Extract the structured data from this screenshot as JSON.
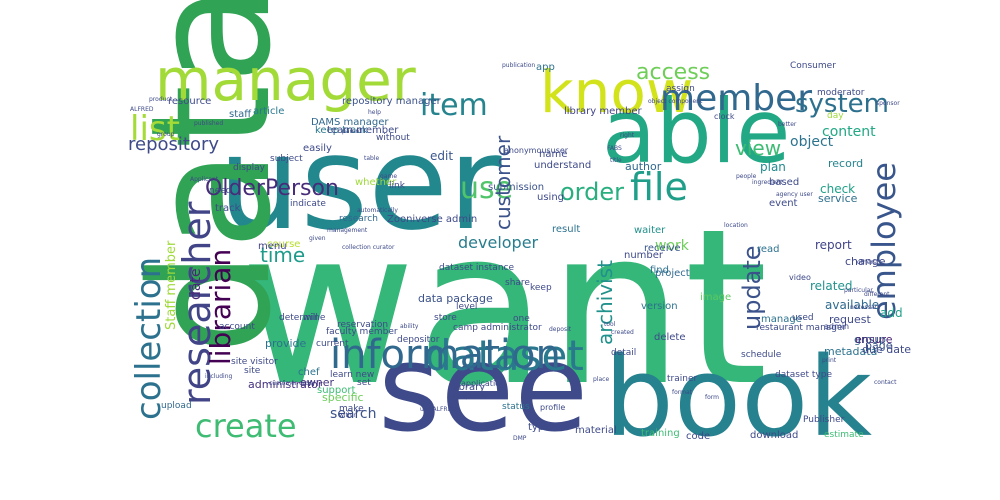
{
  "words": [
    {
      "text": "want",
      "color": "#35b779",
      "weight": 1.0
    },
    {
      "text": "user",
      "color": "#23888e",
      "weight": 0.98
    },
    {
      "text": "data",
      "color": "#31a354",
      "weight": 0.95
    },
    {
      "text": "see",
      "color": "#3e4a89",
      "weight": 0.92
    },
    {
      "text": "book",
      "color": "#26828e",
      "weight": 0.88
    },
    {
      "text": "able",
      "color": "#22a884",
      "weight": 0.82
    },
    {
      "text": "know",
      "color": "#d2e21b",
      "weight": 0.75
    },
    {
      "text": "manager",
      "color": "#a2da37",
      "weight": 0.72
    },
    {
      "text": "dataset",
      "color": "#2a788e",
      "weight": 0.55
    },
    {
      "text": "information",
      "color": "#31688e",
      "weight": 0.55
    },
    {
      "text": "researcher",
      "color": "#414487",
      "weight": 0.52
    },
    {
      "text": "collection",
      "color": "#2c728e",
      "weight": 0.5
    },
    {
      "text": "member",
      "color": "#31688e",
      "weight": 0.45
    },
    {
      "text": "file",
      "color": "#1f9e89",
      "weight": 0.44
    },
    {
      "text": "employee",
      "color": "#39568c",
      "weight": 0.43
    },
    {
      "text": "list",
      "color": "#a5db36",
      "weight": 0.42
    },
    {
      "text": "create",
      "color": "#3fbc73",
      "weight": 0.4
    },
    {
      "text": "use",
      "color": "#50c46a",
      "weight": 0.4
    },
    {
      "text": "item",
      "color": "#25848e",
      "weight": 0.38
    },
    {
      "text": "librarian",
      "color": "#440154",
      "weight": 0.36
    },
    {
      "text": "system",
      "color": "#2d708e",
      "weight": 0.32
    },
    {
      "text": "update",
      "color": "#3b528b",
      "weight": 0.31
    },
    {
      "text": "order",
      "color": "#29af7f",
      "weight": 0.3
    },
    {
      "text": "access",
      "color": "#6ece58",
      "weight": 0.28
    },
    {
      "text": "OlderPerson",
      "color": "#472c7a",
      "weight": 0.27
    },
    {
      "text": "view",
      "color": "#3dbc74",
      "weight": 0.26
    },
    {
      "text": "time",
      "color": "#1e9b8a",
      "weight": 0.25
    },
    {
      "text": "repository",
      "color": "#3e4a89",
      "weight": 0.25
    },
    {
      "text": "customer",
      "color": "#3b528b",
      "weight": 0.24
    },
    {
      "text": "archivist",
      "color": "#21918c",
      "weight": 0.24
    },
    {
      "text": "developer",
      "color": "#287d8e",
      "weight": 0.22
    },
    {
      "text": "content",
      "color": "#22a884",
      "weight": 0.21
    },
    {
      "text": "object",
      "color": "#2c738e",
      "weight": 0.2
    },
    {
      "text": "search",
      "color": "#3b528b",
      "weight": 0.19
    },
    {
      "text": "work",
      "color": "#6ccd5a",
      "weight": 0.18
    },
    {
      "text": "date",
      "color": "#482878",
      "weight": 0.18
    },
    {
      "text": "Staff member",
      "color": "#9fda3a",
      "weight": 0.17
    },
    {
      "text": "report",
      "color": "#414487",
      "weight": 0.16
    },
    {
      "text": "related",
      "color": "#21918c",
      "weight": 0.16
    },
    {
      "text": "edit",
      "color": "#39568c",
      "weight": 0.16
    },
    {
      "text": "add",
      "color": "#1f9e89",
      "weight": 0.15
    },
    {
      "text": "available",
      "color": "#2f6b8e",
      "weight": 0.15
    },
    {
      "text": "plan",
      "color": "#23898e",
      "weight": 0.15
    },
    {
      "text": "check",
      "color": "#1fa088",
      "weight": 0.14
    },
    {
      "text": "record",
      "color": "#25848e",
      "weight": 0.14
    },
    {
      "text": "service",
      "color": "#2e6f8e",
      "weight": 0.14
    },
    {
      "text": "change",
      "color": "#3f4788",
      "weight": 0.14
    },
    {
      "text": "author",
      "color": "#31688e",
      "weight": 0.13
    },
    {
      "text": "provide",
      "color": "#2c728e",
      "weight": 0.13
    },
    {
      "text": "administrator",
      "color": "#46327e",
      "weight": 0.13
    },
    {
      "text": "data package",
      "color": "#3b528b",
      "weight": 0.12
    },
    {
      "text": "owner",
      "color": "#46337e",
      "weight": 0.12
    },
    {
      "text": "specific",
      "color": "#6ccd5a",
      "weight": 0.12
    },
    {
      "text": "metadata",
      "color": "#2c728e",
      "weight": 0.12
    },
    {
      "text": "due date",
      "color": "#3e4989",
      "weight": 0.11
    },
    {
      "text": "page",
      "color": "#3b528b",
      "weight": 0.11
    },
    {
      "text": "group",
      "color": "#31688e",
      "weight": 0.11
    },
    {
      "text": "ensure",
      "color": "#482173",
      "weight": 0.11
    },
    {
      "text": "request",
      "color": "#3e4a89",
      "weight": 0.11
    },
    {
      "text": "article",
      "color": "#2a788e",
      "weight": 0.11
    },
    {
      "text": "resource",
      "color": "#3e4a89",
      "weight": 0.1
    },
    {
      "text": "repository manager",
      "color": "#3b528b",
      "weight": 0.1
    },
    {
      "text": "keep track",
      "color": "#2a788e",
      "weight": 0.1
    },
    {
      "text": "easily",
      "color": "#3e4a89",
      "weight": 0.1
    },
    {
      "text": "image",
      "color": "#5ec962",
      "weight": 0.1
    },
    {
      "text": "project",
      "color": "#31688e",
      "weight": 0.1
    },
    {
      "text": "find",
      "color": "#2c728e",
      "weight": 0.1
    },
    {
      "text": "version",
      "color": "#2c728e",
      "weight": 0.1
    },
    {
      "text": "delete",
      "color": "#3e4a89",
      "weight": 0.1
    },
    {
      "text": "app",
      "color": "#2c728e",
      "weight": 0.1
    },
    {
      "text": "library member",
      "color": "#414487",
      "weight": 0.09
    },
    {
      "text": "name",
      "color": "#3e4a89",
      "weight": 0.09
    },
    {
      "text": "understand",
      "color": "#3e4a89",
      "weight": 0.09
    },
    {
      "text": "submission",
      "color": "#3b528b",
      "weight": 0.09
    },
    {
      "text": "using",
      "color": "#3e4a89",
      "weight": 0.09
    },
    {
      "text": "result",
      "color": "#2c728e",
      "weight": 0.09
    },
    {
      "text": "waiter",
      "color": "#21918c",
      "weight": 0.09
    },
    {
      "text": "receive",
      "color": "#39568c",
      "weight": 0.09
    },
    {
      "text": "event",
      "color": "#3e4a89",
      "weight": 0.09
    },
    {
      "text": "read",
      "color": "#2c728e",
      "weight": 0.09
    },
    {
      "text": "number",
      "color": "#3e4a89",
      "weight": 0.08
    },
    {
      "text": "manage",
      "color": "#2c728e",
      "weight": 0.08
    },
    {
      "text": "based",
      "color": "#3e4a89",
      "weight": 0.08
    },
    {
      "text": "DAMS manager",
      "color": "#31688e",
      "weight": 0.08
    },
    {
      "text": "team member",
      "color": "#3e4a89",
      "weight": 0.08
    },
    {
      "text": "without",
      "color": "#3e4a89",
      "weight": 0.08
    },
    {
      "text": "whether",
      "color": "#9fda3a",
      "weight": 0.08
    },
    {
      "text": "course",
      "color": "#b5de2b",
      "weight": 0.08
    },
    {
      "text": "indicate",
      "color": "#3e4a89",
      "weight": 0.08
    },
    {
      "text": "subject",
      "color": "#3e4a89",
      "weight": 0.08
    },
    {
      "text": "staff",
      "color": "#31688e",
      "weight": 0.08
    },
    {
      "text": "track",
      "color": "#3e4a89",
      "weight": 0.08
    },
    {
      "text": "need",
      "color": "#3e4a89",
      "weight": 0.08
    },
    {
      "text": "display",
      "color": "#3e4a89",
      "weight": 0.08
    },
    {
      "text": "Zooniverse admin",
      "color": "#3e4a89",
      "weight": 0.08
    },
    {
      "text": "menu",
      "color": "#414487",
      "weight": 0.08
    },
    {
      "text": "research",
      "color": "#31688e",
      "weight": 0.08
    },
    {
      "text": "chef",
      "color": "#2c728e",
      "weight": 0.08
    },
    {
      "text": "site visitor",
      "color": "#3e4a89",
      "weight": 0.08
    },
    {
      "text": "site",
      "color": "#3e4a89",
      "weight": 0.08
    },
    {
      "text": "upload",
      "color": "#31688e",
      "weight": 0.08
    },
    {
      "text": "determine",
      "color": "#3e4a89",
      "weight": 0.08
    },
    {
      "text": "learn new",
      "color": "#3e4a89",
      "weight": 0.08
    },
    {
      "text": "support",
      "color": "#3dbc74",
      "weight": 0.08
    },
    {
      "text": "set",
      "color": "#3e4a89",
      "weight": 0.08
    },
    {
      "text": "current",
      "color": "#3e4a89",
      "weight": 0.08
    },
    {
      "text": "make",
      "color": "#3e4a89",
      "weight": 0.08
    },
    {
      "text": "library",
      "color": "#3e4a89",
      "weight": 0.08
    },
    {
      "text": "status",
      "color": "#2c728e",
      "weight": 0.08
    },
    {
      "text": "type",
      "color": "#3e4a89",
      "weight": 0.08
    },
    {
      "text": "material",
      "color": "#3e4a89",
      "weight": 0.08
    },
    {
      "text": "training",
      "color": "#3dbc74",
      "weight": 0.08
    },
    {
      "text": "code",
      "color": "#3e4a89",
      "weight": 0.08
    },
    {
      "text": "download",
      "color": "#3e4a89",
      "weight": 0.08
    },
    {
      "text": "estimate",
      "color": "#3dbc74",
      "weight": 0.08
    },
    {
      "text": "Publisher",
      "color": "#3e4a89",
      "weight": 0.08
    },
    {
      "text": "dataset type",
      "color": "#3e4a89",
      "weight": 0.08
    },
    {
      "text": "trainer",
      "color": "#3e4a89",
      "weight": 0.08
    },
    {
      "text": "faculty member",
      "color": "#3e4a89",
      "weight": 0.08
    },
    {
      "text": "depositor",
      "color": "#3e4a89",
      "weight": 0.07
    },
    {
      "text": "camp administrator",
      "color": "#3e4a89",
      "weight": 0.07
    },
    {
      "text": "store",
      "color": "#3e4a89",
      "weight": 0.07
    },
    {
      "text": "level",
      "color": "#3e4a89",
      "weight": 0.07
    },
    {
      "text": "keep",
      "color": "#3e4a89",
      "weight": 0.07
    },
    {
      "text": "share",
      "color": "#3e4a89",
      "weight": 0.07
    },
    {
      "text": "one",
      "color": "#3e4a89",
      "weight": 0.07
    },
    {
      "text": "detail",
      "color": "#3e4a89",
      "weight": 0.07
    },
    {
      "text": "schedule",
      "color": "#3e4a89",
      "weight": 0.07
    },
    {
      "text": "used",
      "color": "#3e4a89",
      "weight": 0.07
    },
    {
      "text": "restaurant manager",
      "color": "#3e4a89",
      "weight": 0.07
    },
    {
      "text": "account",
      "color": "#3e4a89",
      "weight": 0.07
    },
    {
      "text": "reservation",
      "color": "#3e4a89",
      "weight": 0.07
    },
    {
      "text": "will",
      "color": "#3e4a89",
      "weight": 0.07
    },
    {
      "text": "dataset instance",
      "color": "#3e4a89",
      "weight": 0.07
    },
    {
      "text": "link",
      "color": "#3e4a89",
      "weight": 0.07
    },
    {
      "text": "admin",
      "color": "#3e4a89",
      "weight": 0.07
    },
    {
      "text": "video",
      "color": "#3e4a89",
      "weight": 0.07
    },
    {
      "text": "moderator",
      "color": "#3e4a89",
      "weight": 0.07
    },
    {
      "text": "Consumer",
      "color": "#3e4a89",
      "weight": 0.07
    },
    {
      "text": "day",
      "color": "#9fda3a",
      "weight": 0.07
    },
    {
      "text": "assign",
      "color": "#3e4a89",
      "weight": 0.07
    },
    {
      "text": "clock",
      "color": "#3e4a89",
      "weight": 0.07
    },
    {
      "text": "anonymoususer",
      "color": "#3e4a89",
      "weight": 0.07
    },
    {
      "text": "application",
      "color": "#3e4a89",
      "weight": 0.07
    },
    {
      "text": "profile",
      "color": "#3e4a89",
      "weight": 0.07
    },
    {
      "text": "product",
      "color": "#3e4a89",
      "weight": 0.07
    },
    {
      "text": "ALFRED",
      "color": "#3e4a89",
      "weight": 0.07
    },
    {
      "text": "right",
      "color": "#3e4a89",
      "weight": 0.07
    },
    {
      "text": "object component",
      "color": "#3e4a89",
      "weight": 0.06
    },
    {
      "text": "FABS",
      "color": "#3e4a89",
      "weight": 0.06
    },
    {
      "text": "title",
      "color": "#3e4a89",
      "weight": 0.06
    },
    {
      "text": "table",
      "color": "#3e4a89",
      "weight": 0.05
    },
    {
      "text": "published",
      "color": "#3e4a89",
      "weight": 0.05
    },
    {
      "text": "Applicant",
      "color": "#3e4a89",
      "weight": 0.05
    },
    {
      "text": "people",
      "color": "#3e4a89",
      "weight": 0.05
    },
    {
      "text": "ingredient",
      "color": "#3e4a89",
      "weight": 0.05
    },
    {
      "text": "agency user",
      "color": "#3e4a89",
      "weight": 0.05
    },
    {
      "text": "location",
      "color": "#3e4a89",
      "weight": 0.05
    },
    {
      "text": "others",
      "color": "#3e4a89",
      "weight": 0.05
    },
    {
      "text": "particular",
      "color": "#3e4a89",
      "weight": 0.05
    },
    {
      "text": "different",
      "color": "#3e4a89",
      "weight": 0.05
    },
    {
      "text": "necessary",
      "color": "#3e4a89",
      "weight": 0.05
    },
    {
      "text": "sponsor",
      "color": "#3e4a89",
      "weight": 0.05
    },
    {
      "text": "help",
      "color": "#3e4a89",
      "weight": 0.05
    },
    {
      "text": "parent",
      "color": "#3e4a89",
      "weight": 0.05
    },
    {
      "text": "game",
      "color": "#3e4a89",
      "weight": 0.05
    },
    {
      "text": "automatically",
      "color": "#3e4a89",
      "weight": 0.05
    },
    {
      "text": "management",
      "color": "#3e4a89",
      "weight": 0.05
    },
    {
      "text": "given",
      "color": "#3e4a89",
      "weight": 0.05
    },
    {
      "text": "collection curator",
      "color": "#3e4a89",
      "weight": 0.05
    },
    {
      "text": "ability",
      "color": "#3e4a89",
      "weight": 0.05
    },
    {
      "text": "deposit",
      "color": "#3e4a89",
      "weight": 0.05
    },
    {
      "text": "created",
      "color": "#3e4a89",
      "weight": 0.05
    },
    {
      "text": "tool",
      "color": "#3e4a89",
      "weight": 0.05
    },
    {
      "text": "print",
      "color": "#3e4a89",
      "weight": 0.05
    },
    {
      "text": "contact",
      "color": "#3e4a89",
      "weight": 0.05
    },
    {
      "text": "including",
      "color": "#3e4a89",
      "weight": 0.05
    },
    {
      "text": "customer order",
      "color": "#3e4a89",
      "weight": 0.05
    },
    {
      "text": "component",
      "color": "#3e4a89",
      "weight": 0.05
    },
    {
      "text": "use ALFRED",
      "color": "#3e4a89",
      "weight": 0.05
    },
    {
      "text": "format",
      "color": "#3e4a89",
      "weight": 0.05
    },
    {
      "text": "form",
      "color": "#3e4a89",
      "weight": 0.05
    },
    {
      "text": "within",
      "color": "#3e4a89",
      "weight": 0.05
    },
    {
      "text": "DMP",
      "color": "#3e4a89",
      "weight": 0.05
    },
    {
      "text": "place",
      "color": "#3e4a89",
      "weight": 0.05
    },
    {
      "text": "group",
      "color": "#3e4a89",
      "weight": 0.05
    },
    {
      "text": "publication",
      "color": "#3e4a89",
      "weight": 0.05
    },
    {
      "text": "better",
      "color": "#3e4a89",
      "weight": 0.05
    },
    {
      "text": "include",
      "color": "#3e4a89",
      "weight": 0.05
    },
    {
      "text": "quickly",
      "color": "#3e4a89",
      "weight": 0.05
    },
    {
      "text": "camp",
      "color": "#3e4a89",
      "weight": 0.05
    },
    {
      "text": "correct",
      "color": "#3e4a89",
      "weight": 0.05
    },
    {
      "text": "analysis",
      "color": "#3e4a89",
      "weight": 0.05
    },
    {
      "text": "cook",
      "color": "#3e4a89",
      "weight": 0.05
    },
    {
      "text": "library manager",
      "color": "#3e4a89",
      "weight": 0.05
    },
    {
      "text": "map",
      "color": "#3e4a89",
      "weight": 0.05
    },
    {
      "text": "daily",
      "color": "#3e4a89",
      "weight": 0.05
    }
  ]
}
